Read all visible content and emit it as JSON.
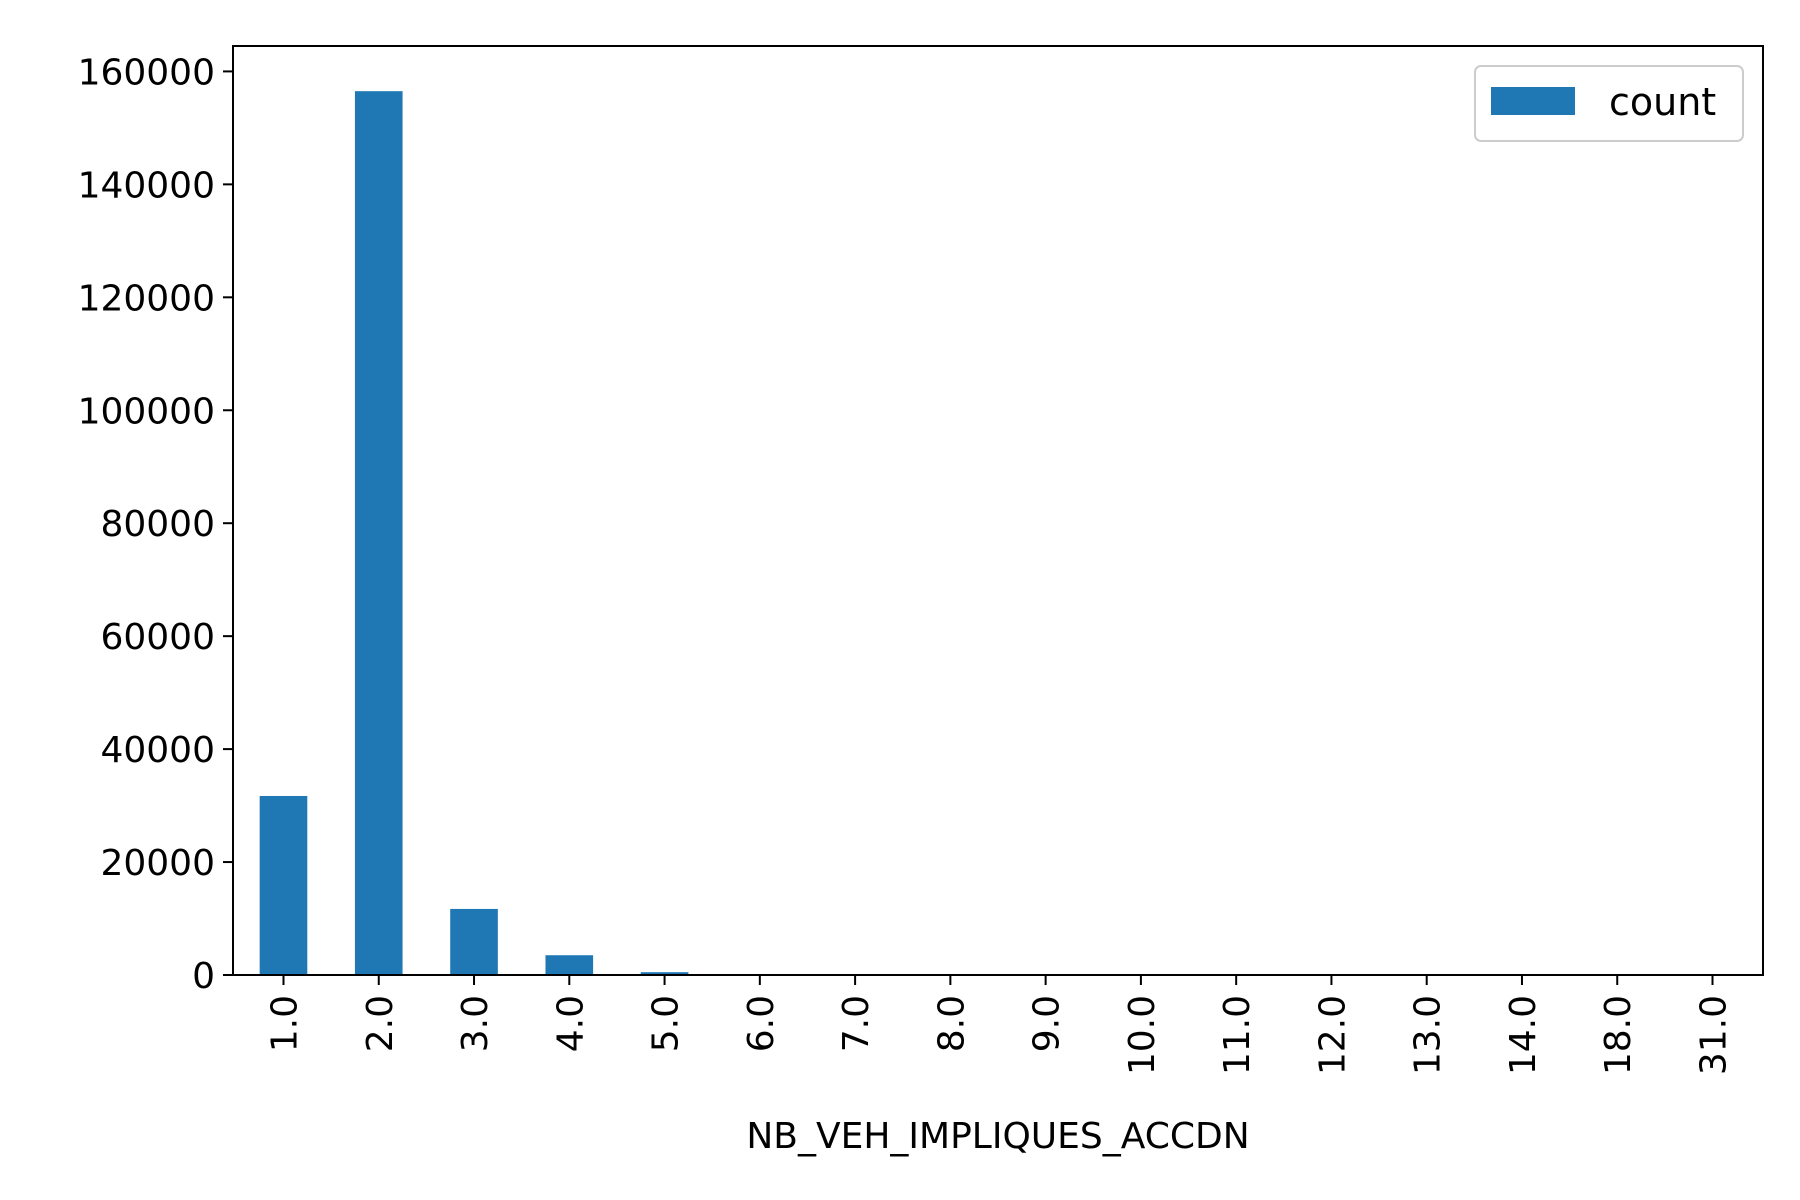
{
  "chart_data": {
    "type": "bar",
    "categories": [
      "1.0",
      "2.0",
      "3.0",
      "4.0",
      "5.0",
      "6.0",
      "7.0",
      "8.0",
      "9.0",
      "10.0",
      "11.0",
      "12.0",
      "13.0",
      "14.0",
      "18.0",
      "31.0"
    ],
    "series": [
      {
        "name": "count",
        "color": "#1f77b4",
        "values": [
          31700,
          156500,
          11700,
          3500,
          500,
          80,
          20,
          10,
          5,
          3,
          2,
          1,
          1,
          1,
          1,
          1
        ]
      }
    ],
    "xlabel": "NB_VEH_IMPLIQUES_ACCDN",
    "ylabel": "",
    "ylim": [
      0,
      164500
    ],
    "yticks": [
      0,
      20000,
      40000,
      60000,
      80000,
      100000,
      120000,
      140000,
      160000
    ],
    "grid": false,
    "legend_position": "top-right"
  }
}
